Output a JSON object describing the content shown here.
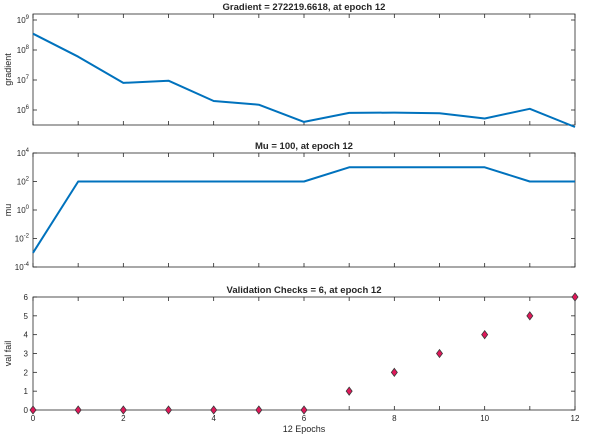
{
  "chart_data": [
    {
      "type": "line",
      "title": "Gradient = 272219.6618, at epoch 12",
      "xlabel": "",
      "ylabel": "gradient",
      "yscale": "log",
      "xlim": [
        0,
        12
      ],
      "ylim_exp": [
        5.5,
        9.2
      ],
      "ytick_exps": [
        6,
        7,
        8,
        9
      ],
      "x": [
        0,
        1,
        2,
        3,
        4,
        5,
        6,
        7,
        8,
        9,
        10,
        11,
        12
      ],
      "y": [
        350000000,
        60000000,
        8000000,
        9500000,
        2000000,
        1500000,
        400000,
        800000,
        820000,
        780000,
        520000,
        1100000,
        272219.6618
      ],
      "show_x_ticklabels": false,
      "color": "#0072BD"
    },
    {
      "type": "line",
      "title": "Mu = 100, at epoch 12",
      "xlabel": "",
      "ylabel": "mu",
      "yscale": "log",
      "xlim": [
        0,
        12
      ],
      "ylim_exp": [
        -4,
        4
      ],
      "ytick_exps": [
        -4,
        -2,
        0,
        2,
        4
      ],
      "x": [
        0,
        1,
        2,
        3,
        4,
        5,
        6,
        7,
        8,
        9,
        10,
        11,
        12
      ],
      "y": [
        0.001,
        100,
        100,
        100,
        100,
        100,
        100,
        1000,
        1000,
        1000,
        1000,
        100,
        100
      ],
      "show_x_ticklabels": false,
      "color": "#0072BD"
    },
    {
      "type": "scatter",
      "title": "Validation Checks = 6, at epoch 12",
      "xlabel": "12 Epochs",
      "ylabel": "val fail",
      "yscale": "linear",
      "xlim": [
        0,
        12
      ],
      "ylim": [
        0,
        6
      ],
      "yticks": [
        0,
        1,
        2,
        3,
        4,
        5,
        6
      ],
      "xticks": [
        0,
        2,
        4,
        6,
        8,
        10,
        12
      ],
      "x": [
        0,
        1,
        2,
        3,
        4,
        5,
        6,
        7,
        8,
        9,
        10,
        11,
        12
      ],
      "y": [
        0,
        0,
        0,
        0,
        0,
        0,
        0,
        1,
        2,
        3,
        4,
        5,
        6
      ],
      "show_x_ticklabels": true,
      "marker": "diamond",
      "marker_fill": "#E0185A",
      "marker_edge": "#3a3a3a"
    }
  ]
}
